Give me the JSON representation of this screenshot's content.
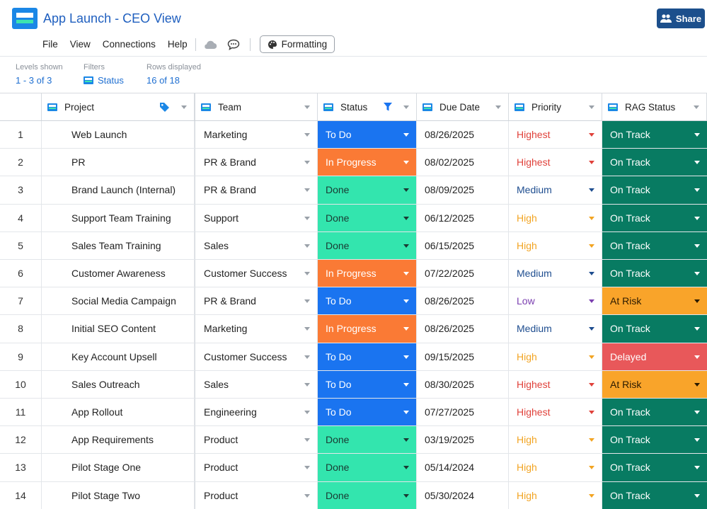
{
  "app": {
    "title": "App Launch - CEO View"
  },
  "menu": {
    "file": "File",
    "view": "View",
    "connections": "Connections",
    "help": "Help",
    "formatting": "Formatting"
  },
  "share": {
    "label": "Share"
  },
  "info": {
    "levels_label": "Levels shown",
    "levels_value": "1 - 3 of 3",
    "filters_label": "Filters",
    "filters_value": "Status",
    "rows_label": "Rows displayed",
    "rows_value": "16 of 18"
  },
  "columns": {
    "project": "Project",
    "team": "Team",
    "status": "Status",
    "due": "Due Date",
    "priority": "Priority",
    "rag": "RAG Status"
  },
  "colors": {
    "status_todo": "#1a74f0",
    "status_in_progress": "#fa7a35",
    "status_done": "#33e5ae",
    "rag_on_track": "#087b62",
    "rag_at_risk": "#f9a42a",
    "rag_delayed": "#e8585a",
    "priority_highest": "#e0413a",
    "priority_medium": "#1e4d8f",
    "priority_high": "#f2a422",
    "priority_low": "#7b3fb0",
    "accent": "#1c4f8c"
  },
  "rows": [
    {
      "num": "1",
      "project": "Web Launch",
      "team": "Marketing",
      "status": "To Do",
      "due": "08/26/2025",
      "priority": "Highest",
      "rag": "On Track"
    },
    {
      "num": "2",
      "project": "PR",
      "team": "PR & Brand",
      "status": "In Progress",
      "due": "08/02/2025",
      "priority": "Highest",
      "rag": "On Track"
    },
    {
      "num": "3",
      "project": "Brand Launch (Internal)",
      "team": "PR & Brand",
      "status": "Done",
      "due": "08/09/2025",
      "priority": "Medium",
      "rag": "On Track"
    },
    {
      "num": "4",
      "project": "Support Team Training",
      "team": "Support",
      "status": "Done",
      "due": "06/12/2025",
      "priority": "High",
      "rag": "On Track"
    },
    {
      "num": "5",
      "project": "Sales Team Training",
      "team": "Sales",
      "status": "Done",
      "due": "06/15/2025",
      "priority": "High",
      "rag": "On Track"
    },
    {
      "num": "6",
      "project": "Customer Awareness",
      "team": "Customer Success",
      "status": "In Progress",
      "due": "07/22/2025",
      "priority": "Medium",
      "rag": "On Track"
    },
    {
      "num": "7",
      "project": "Social Media Campaign",
      "team": "PR & Brand",
      "status": "To Do",
      "due": "08/26/2025",
      "priority": "Low",
      "rag": "At Risk"
    },
    {
      "num": "8",
      "project": "Initial SEO Content",
      "team": "Marketing",
      "status": "In Progress",
      "due": "08/26/2025",
      "priority": "Medium",
      "rag": "On Track"
    },
    {
      "num": "9",
      "project": "Key Account Upsell",
      "team": "Customer Success",
      "status": "To Do",
      "due": "09/15/2025",
      "priority": "High",
      "rag": "Delayed"
    },
    {
      "num": "10",
      "project": "Sales Outreach",
      "team": "Sales",
      "status": "To Do",
      "due": "08/30/2025",
      "priority": "Highest",
      "rag": "At Risk"
    },
    {
      "num": "11",
      "project": "App Rollout",
      "team": "Engineering",
      "status": "To Do",
      "due": "07/27/2025",
      "priority": "Highest",
      "rag": "On Track"
    },
    {
      "num": "12",
      "project": "App Requirements",
      "team": "Product",
      "status": "Done",
      "due": "03/19/2025",
      "priority": "High",
      "rag": "On Track"
    },
    {
      "num": "13",
      "project": "Pilot Stage One",
      "team": "Product",
      "status": "Done",
      "due": "05/14/2024",
      "priority": "High",
      "rag": "On Track"
    },
    {
      "num": "14",
      "project": "Pilot Stage Two",
      "team": "Product",
      "status": "Done",
      "due": "05/30/2024",
      "priority": "High",
      "rag": "On Track"
    }
  ]
}
